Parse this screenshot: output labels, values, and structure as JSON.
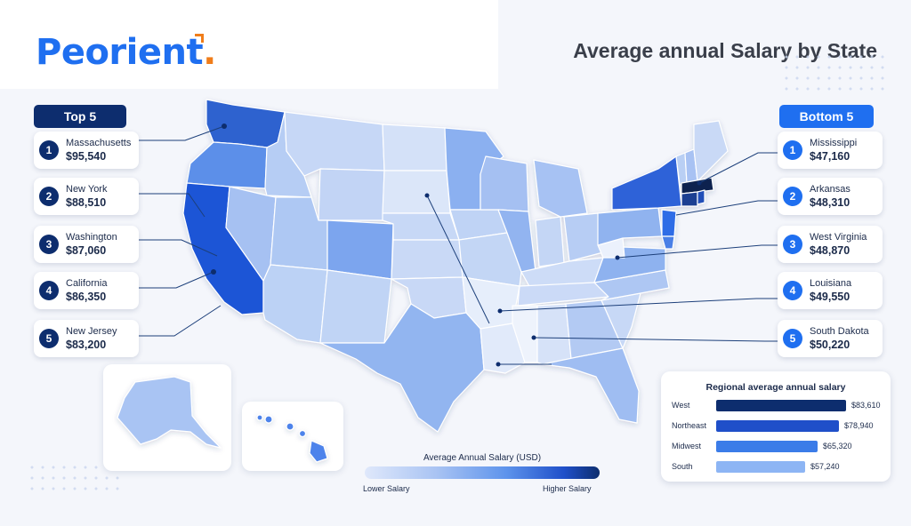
{
  "header": {
    "brand": "Peorient",
    "brand_dot": ".",
    "title": "Average annual Salary by State"
  },
  "top5": {
    "label": "Top 5",
    "items": [
      {
        "rank": "1",
        "state": "Massachusetts",
        "salary": "$95,540"
      },
      {
        "rank": "2",
        "state": "New York",
        "salary": "$88,510"
      },
      {
        "rank": "3",
        "state": "Washington",
        "salary": "$87,060"
      },
      {
        "rank": "4",
        "state": "California",
        "salary": "$86,350"
      },
      {
        "rank": "5",
        "state": "New Jersey",
        "salary": "$83,200"
      }
    ]
  },
  "bottom5": {
    "label": "Bottom 5",
    "items": [
      {
        "rank": "1",
        "state": "Mississippi",
        "salary": "$47,160"
      },
      {
        "rank": "2",
        "state": "Arkansas",
        "salary": "$48,310"
      },
      {
        "rank": "3",
        "state": "West Virginia",
        "salary": "$48,870"
      },
      {
        "rank": "4",
        "state": "Louisiana",
        "salary": "$49,550"
      },
      {
        "rank": "5",
        "state": "South Dakota",
        "salary": "$50,220"
      }
    ]
  },
  "legend": {
    "title": "Average Annual Salary (USD)",
    "low": "Lower Salary",
    "high": "Higher Salary"
  },
  "regional": {
    "title": "Regional average annual salary",
    "rows": [
      {
        "region": "West",
        "value": 83610,
        "label": "$83,610",
        "color": "#0d2d6e"
      },
      {
        "region": "Northeast",
        "value": 78940,
        "label": "$78,940",
        "color": "#1f4fc9"
      },
      {
        "region": "Midwest",
        "value": 65320,
        "label": "$65,320",
        "color": "#3b7ce8"
      },
      {
        "region": "South",
        "value": 57240,
        "label": "$57,240",
        "color": "#8db5f4"
      }
    ]
  },
  "colors": {
    "brand_blue": "#1f6ff0",
    "brand_orange": "#f07d1a",
    "navy": "#0d2d6e"
  }
}
